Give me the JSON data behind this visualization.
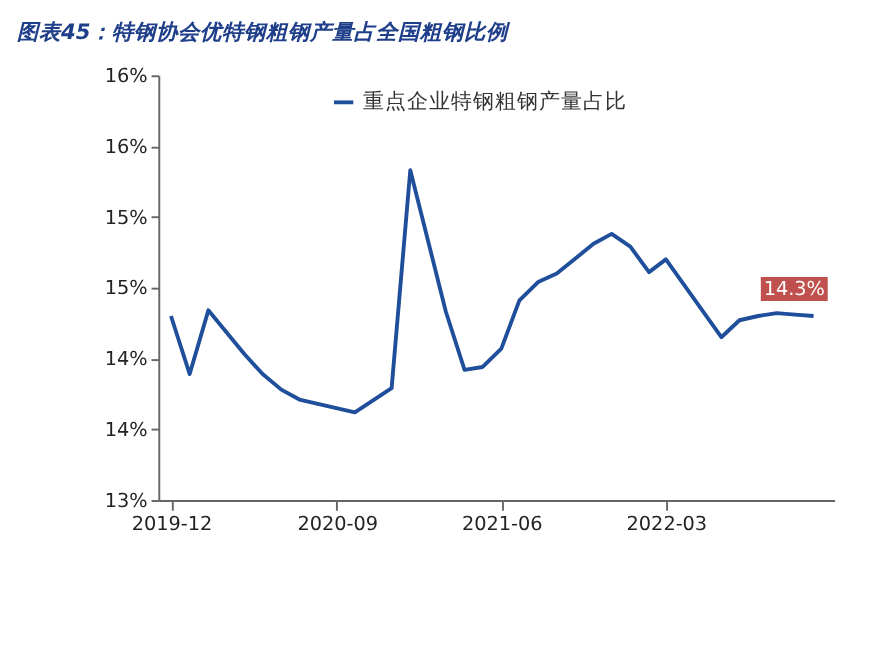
{
  "chart_data": {
    "type": "line",
    "title": "图表45：特钢协会优特钢粗钢产量占全国粗钢比例",
    "x": [
      "2019-12",
      "2020-01",
      "2020-02",
      "2020-03",
      "2020-04",
      "2020-05",
      "2020-06",
      "2020-07",
      "2020-10",
      "2020-12",
      "2021-01",
      "2021-03",
      "2021-04",
      "2021-05",
      "2021-06",
      "2021-07",
      "2021-08",
      "2021-09",
      "2021-11",
      "2021-12",
      "2022-01",
      "2022-02",
      "2022-03",
      "2022-06",
      "2022-07",
      "2022-08",
      "2022-09",
      "2022-10",
      "2022-11"
    ],
    "series": [
      {
        "name": "重点企业特钢粗钢产量占比",
        "color": "#1f4e9a",
        "values": [
          14.3,
          13.89,
          14.34,
          14.19,
          14.03,
          13.89,
          13.78,
          13.71,
          13.62,
          13.79,
          15.33,
          14.33,
          13.92,
          13.94,
          14.07,
          14.41,
          14.54,
          14.6,
          14.81,
          14.88,
          14.79,
          14.61,
          14.7,
          14.15,
          14.27,
          14.3,
          14.32,
          14.31,
          14.3
        ],
        "value_labels": [
          null,
          null,
          null,
          null,
          null,
          null,
          null,
          null,
          null,
          null,
          null,
          null,
          null,
          null,
          null,
          null,
          null,
          null,
          null,
          null,
          null,
          null,
          null,
          null,
          null,
          null,
          null,
          null,
          "14.3%"
        ]
      }
    ],
    "xlim": [
      "2019-11-10",
      "2022-12-05"
    ],
    "xticks": [
      "2019-12",
      "2020-09",
      "2021-06",
      "2022-03"
    ],
    "ylim": [
      13,
      16
    ],
    "yticks": [
      {
        "value": 13,
        "label": "13%"
      },
      {
        "value": 13.5,
        "label": "14%"
      },
      {
        "value": 14,
        "label": "14%"
      },
      {
        "value": 14.5,
        "label": "15%"
      },
      {
        "value": 15,
        "label": "15%"
      },
      {
        "value": 15.5,
        "label": "16%"
      },
      {
        "value": 16,
        "label": "16%"
      }
    ],
    "grid": false,
    "legend": "top",
    "marker": "none",
    "line_style": "solid"
  }
}
